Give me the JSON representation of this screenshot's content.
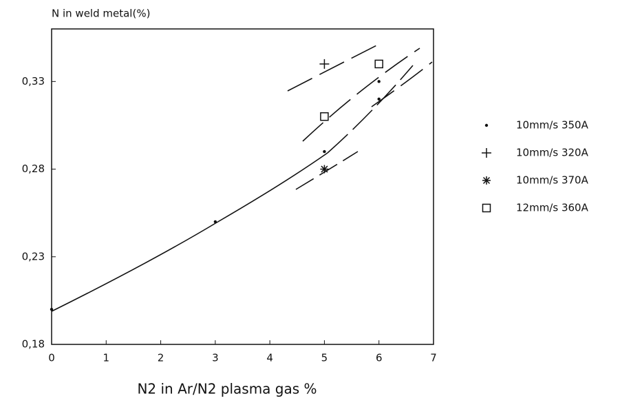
{
  "chart_data": {
    "type": "scatter",
    "y_label": "N in weld metal(%)",
    "x_label": "N2 in Ar/N2 plasma gas %",
    "xlim": [
      0,
      7
    ],
    "xticks": [
      0,
      1,
      2,
      3,
      4,
      5,
      6,
      7
    ],
    "ylim": [
      0.18,
      0.36
    ],
    "yticks": [
      {
        "value": 0.18,
        "label": "0,18"
      },
      {
        "value": 0.23,
        "label": "0,23"
      },
      {
        "value": 0.28,
        "label": "0,28"
      },
      {
        "value": 0.33,
        "label": "0,33"
      }
    ],
    "grid": false,
    "legend": "right",
    "series": [
      {
        "name": "10mm/s 350A",
        "color": "#111111",
        "marker": "dot",
        "x": [
          0,
          3,
          5,
          6,
          6
        ],
        "y": [
          0.2,
          0.25,
          0.29,
          0.33,
          0.32
        ]
      },
      {
        "name": "10mm/s 320A",
        "color": "#111111",
        "marker": "plus",
        "x": [
          5
        ],
        "y": [
          0.34
        ]
      },
      {
        "name": "10mm/s 370A",
        "color": "#111111",
        "marker": "asterisk",
        "x": [
          5
        ],
        "y": [
          0.28
        ]
      },
      {
        "name": "12mm/s 360A",
        "color": "#111111",
        "marker": "square",
        "x": [
          5,
          6
        ],
        "y": [
          0.31,
          0.34
        ]
      }
    ]
  }
}
